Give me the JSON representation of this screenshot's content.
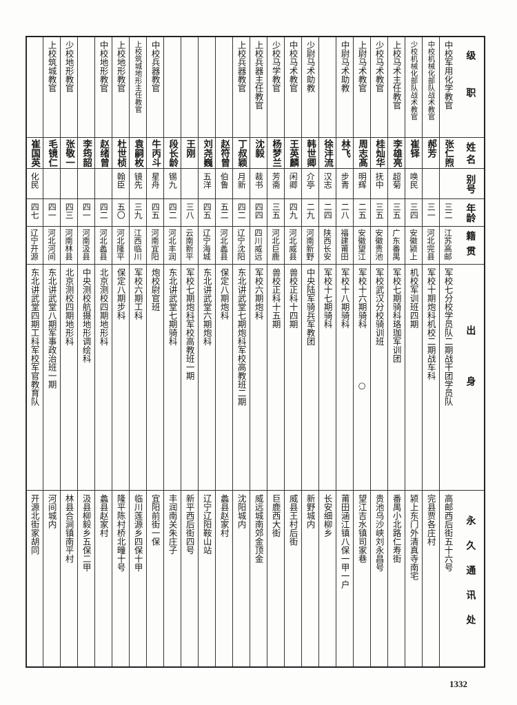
{
  "headers": {
    "title": "级职",
    "name": "姓名",
    "alias": "别号",
    "age": "年龄",
    "native": "籍贯",
    "origin": "出身",
    "address": "永久通讯处"
  },
  "rows": [
    {
      "title": "中校军用化学教官",
      "name": "张仁煦",
      "alias": "",
      "age": "三二",
      "native": "江苏高邮",
      "origin": "军校七分校学员队二期战干团学员队",
      "address": "高邮西后街五十六号"
    },
    {
      "title": "中校机械化部队战术教官",
      "name": "郝芳",
      "alias": "",
      "age": "三一",
      "native": "河北完县",
      "origin": "军校十期炮科机校二期战车科",
      "address": "完县贾各庄村"
    },
    {
      "title": "少校机械化部队战术教官",
      "name": "崔铎",
      "alias": "唤民",
      "age": "三四",
      "native": "安徽颍上",
      "origin": "机校军训班四期",
      "address": "颍上东门外清真寺南宅"
    },
    {
      "title": "上校马术主任教官",
      "name": "李雄亮",
      "alias": "超菊",
      "age": "三五",
      "native": "广东番禺",
      "origin": "军校七期骑科珞珈军训团",
      "address": "番禺小北路仁寿街"
    },
    {
      "title": "少校马术教官",
      "name": "桂灿华",
      "alias": "抚中",
      "age": "三五",
      "native": "安徽贵池",
      "origin": "军校武汉分校骑训班",
      "address": "贵池乌沙峡刘永昌号"
    },
    {
      "title": "上尉马术教官",
      "name": "周志髙",
      "alias": "明辉",
      "age": "二五",
      "native": "安徽望江",
      "origin": "军校十六期骑科　　　　　　○",
      "address": "望江吉水镇司家巷"
    },
    {
      "title": "中尉马术助教",
      "name": "林飞",
      "alias": "步青",
      "age": "二八",
      "native": "福建莆田",
      "origin": "军校十八期骑科",
      "address": "莆田涵江镇八保一甲一户"
    },
    {
      "title": "",
      "name": "徐沣流",
      "alias": "汉志",
      "age": "二四",
      "native": "陕西长安",
      "origin": "军校十七期骑科",
      "address": "长安细柳乡"
    },
    {
      "title": "少尉马术助教",
      "name": "韩世卿",
      "alias": "介亭",
      "age": "二九",
      "native": "河南新野",
      "origin": "中央陆军骑兵军教团",
      "address": "新野城内"
    },
    {
      "title": "中校马术教官",
      "name": "王英麟",
      "alias": "闲卿",
      "age": "四九",
      "native": "河北威县",
      "origin": "兽校正科十四期",
      "address": "威县王村后街"
    },
    {
      "title": "少校马学教官",
      "name": "杨梦兰",
      "alias": "芳斋",
      "age": "三五",
      "native": "河北巨鹿",
      "origin": "兽校正科十五期",
      "address": "巨鹿西大街"
    },
    {
      "title": "上校兵器主任教官",
      "name": "沈毅",
      "alias": "裁书",
      "age": "四四",
      "native": "四川威远",
      "origin": "军校六期炮科",
      "address": "威远城南郊金顶金"
    },
    {
      "title": "上校兵器教官",
      "name": "丁叔颖",
      "alias": "月新",
      "age": "四二",
      "native": "辽宁沈阳",
      "origin": "东北讲武堂七期炮科军校高教班二期",
      "address": "沈阳城内"
    },
    {
      "title": "",
      "name": "赵符曾",
      "alias": "伯鲁",
      "age": "五二",
      "native": "河北蠡县",
      "origin": "保定八期炮科",
      "address": "蠡县赵家村"
    },
    {
      "title": "",
      "name": "刘尧巍",
      "alias": "五洋",
      "age": "四五",
      "native": "辽宁海城",
      "origin": "东北讲武堂六期炮科",
      "address": "辽宁辽阳鞍山站"
    },
    {
      "title": "",
      "name": "王刚",
      "alias": "",
      "age": "三八",
      "native": "云南新平",
      "origin": "军校七期炮科军校高教班一期",
      "address": "新平西后街四号"
    },
    {
      "title": "",
      "name": "段长龄",
      "alias": "锡九",
      "age": "四二",
      "native": "河北丰润",
      "origin": "东北讲武堂七期骑科",
      "address": "丰润南关朱庄子"
    },
    {
      "title": "中校兵器教官",
      "name": "牛丙斗",
      "alias": "星舟",
      "age": "四五",
      "native": "河南宜阳",
      "origin": "炮校尉官班",
      "address": "宜阳前街一保"
    },
    {
      "title": "上校筑城地形主任教官",
      "name": "袁嗣枚",
      "alias": "镜先",
      "age": "三九",
      "native": "江西临川",
      "origin": "军校六期工科",
      "address": "临川莲源乡四保十甲"
    },
    {
      "title": "上校地形教官",
      "name": "杜世桢",
      "alias": "翰臣",
      "age": "五〇",
      "native": "河北隆平",
      "origin": "保定八期步科",
      "address": "隆平陈村桥北疃十号"
    },
    {
      "title": "中校地形教官",
      "name": "赵绪曾",
      "alias": "",
      "age": "四二",
      "native": "河北蠡县",
      "origin": "北京测校四期地形科",
      "address": "蠡县赵家村"
    },
    {
      "title": "",
      "name": "李筠韶",
      "alias": "",
      "age": "四一",
      "native": "河南汲县",
      "origin": "中央测校航摄地形调绘科",
      "address": "汲县柳毅乡五保二甲"
    },
    {
      "title": "少校地形教官",
      "name": "张敬一",
      "alias": "",
      "age": "四三",
      "native": "河南林县",
      "origin": "北京测校四期地形科",
      "address": "林县合涧镇南平村"
    },
    {
      "title": "上校筑城教官",
      "name": "毛镜仁",
      "alias": "",
      "age": "四一",
      "native": "河北河间",
      "origin": "东北讲武堂八期军事政治班一期",
      "address": "河间城内"
    },
    {
      "title": "",
      "name": "崔国英",
      "alias": "化民",
      "age": "四七",
      "native": "辽宁开源",
      "origin": "东北讲武堂四期工科军校军官教育队",
      "address": "开源北街家胡同"
    }
  ],
  "page_number": "1332"
}
